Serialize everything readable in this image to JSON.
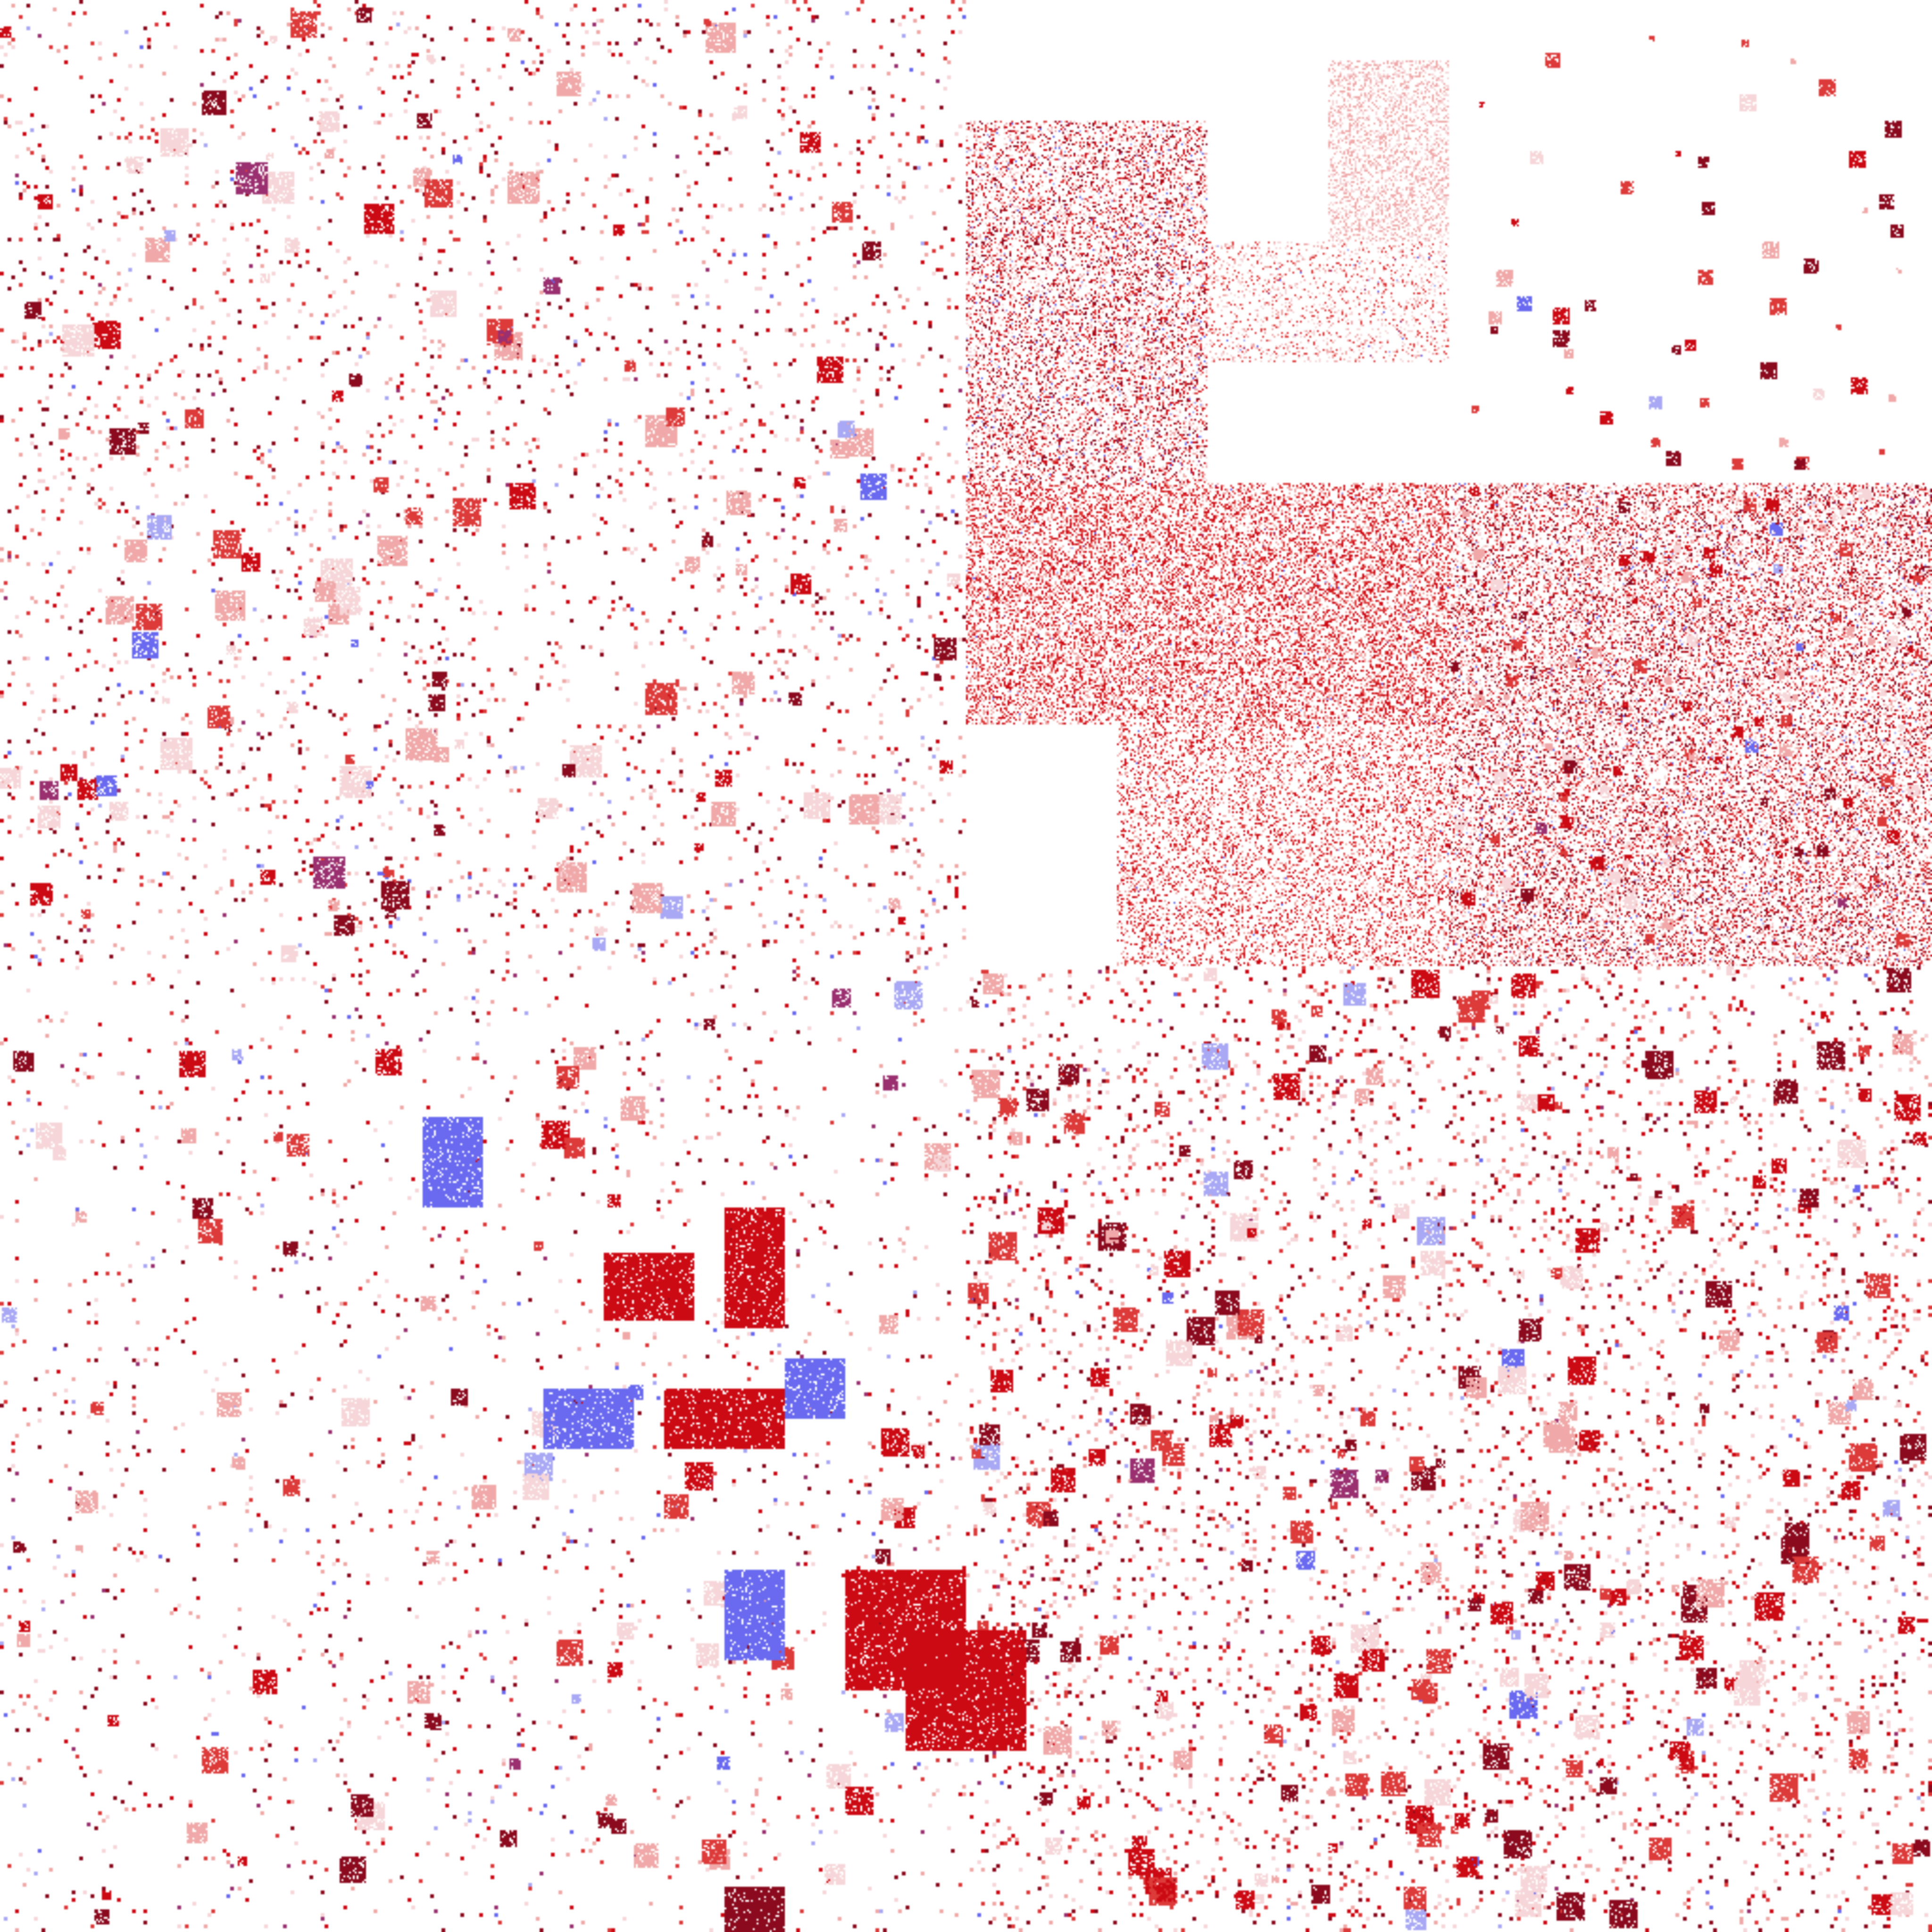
{
  "image": {
    "description_type": "binary-space-partition pixel visualization",
    "palette": {
      "background": "#ffffff",
      "red_dark": "#8b0a1e",
      "red": "#cc0a14",
      "red_mid": "#dd3a3a",
      "red_light": "#f0a8a8",
      "pink_pale": "#f6d6d8",
      "blue": "#6a6af0",
      "blue_light": "#a8a8f4",
      "purple": "#9a3070"
    }
  }
}
